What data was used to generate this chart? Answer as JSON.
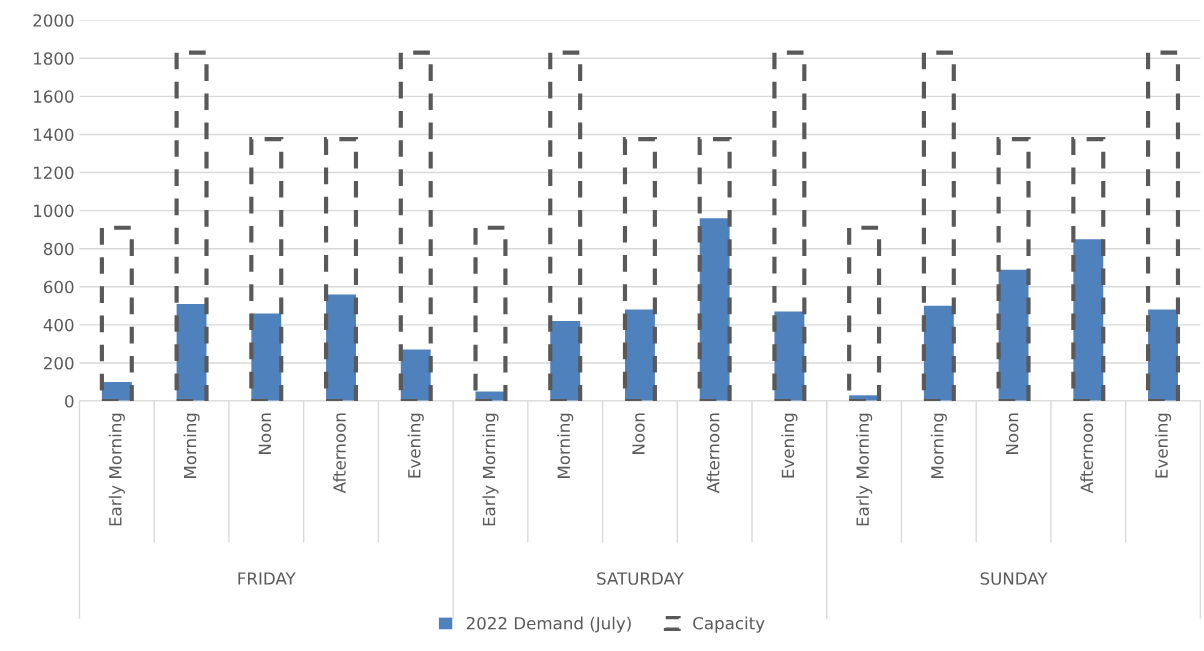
{
  "chart_data": {
    "type": "bar",
    "categories": [
      "Early Morning",
      "Morning",
      "Noon",
      "Afternoon",
      "Evening",
      "Early Morning",
      "Morning",
      "Noon",
      "Afternoon",
      "Evening",
      "Early Morning",
      "Morning",
      "Noon",
      "Afternoon",
      "Evening"
    ],
    "series": [
      {
        "name": "2022 Demand (July)",
        "color": "#4f81bd",
        "values": [
          100,
          510,
          460,
          560,
          270,
          50,
          420,
          480,
          960,
          470,
          30,
          500,
          690,
          850,
          480
        ]
      },
      {
        "name": "Capacity",
        "color": "#595959",
        "line_style": "dashed",
        "values": [
          910,
          1830,
          1375,
          1375,
          1830,
          910,
          1830,
          1375,
          1375,
          1830,
          910,
          1830,
          1375,
          1375,
          1830
        ]
      }
    ],
    "annotations": [
      "FRIDAY",
      "SATURDAY",
      "SUNDAY"
    ],
    "ylim": [
      0,
      2000
    ],
    "yticks": [
      0,
      200,
      400,
      600,
      800,
      1000,
      1200,
      1400,
      1600,
      1800,
      2000
    ],
    "grid": "y",
    "legend": "bottom"
  }
}
